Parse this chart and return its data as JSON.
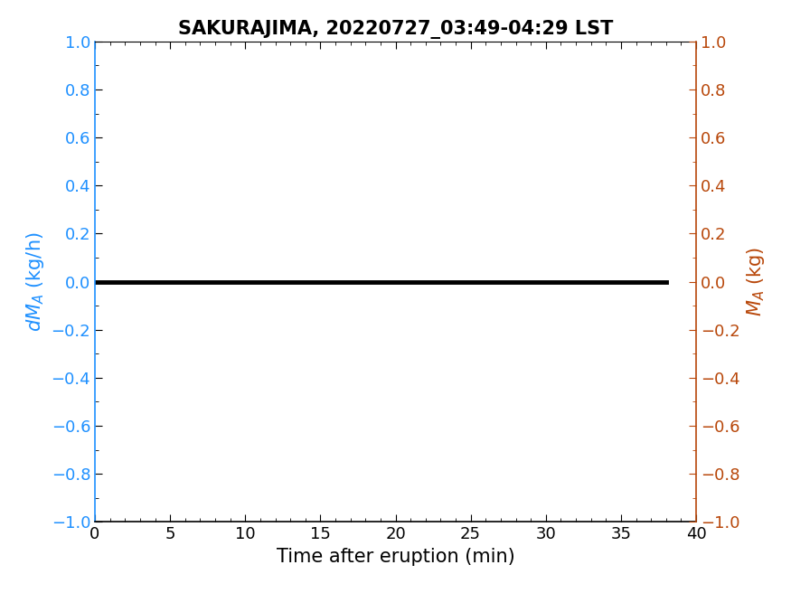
{
  "title": "SAKURAJIMA, 20220727_03:49-04:29 LST",
  "xlabel": "Time after eruption (min)",
  "ylabel_left": "dM_A (kg/h)",
  "ylabel_right": "M_A (kg)",
  "xlim": [
    0,
    40
  ],
  "ylim_left": [
    -1,
    1
  ],
  "ylim_right": [
    -1,
    1
  ],
  "xticks": [
    0,
    5,
    10,
    15,
    20,
    25,
    30,
    35,
    40
  ],
  "yticks": [
    -1,
    -0.8,
    -0.6,
    -0.4,
    -0.2,
    0,
    0.2,
    0.4,
    0.6,
    0.8,
    1
  ],
  "line_x": [
    0,
    38
  ],
  "line_y": [
    0,
    0
  ],
  "line_color": "black",
  "line_width": 3.5,
  "left_label_color": "#1E90FF",
  "right_label_color": "#B8470A",
  "title_color": "black",
  "tick_color_left": "#1E90FF",
  "tick_color_right": "#B8470A",
  "spine_color_left": "#1E90FF",
  "spine_color_right": "#B8470A",
  "background_color": "white",
  "grid": false,
  "title_fontsize": 15,
  "label_fontsize": 15,
  "tick_fontsize": 13
}
